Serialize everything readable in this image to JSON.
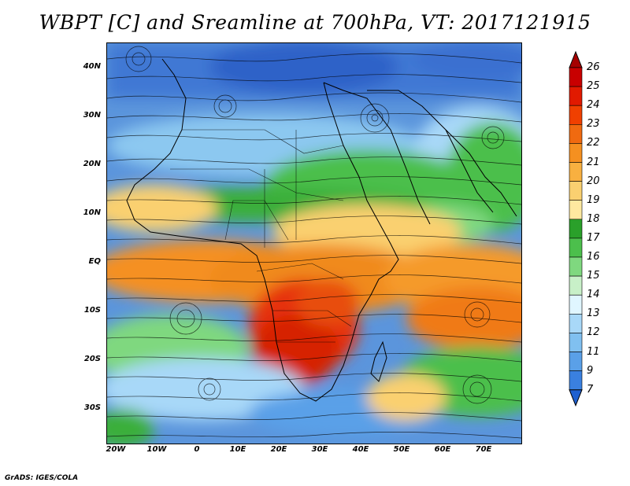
{
  "title": "WBPT [C] and Sreamline at 700hPa, VT: 2017121915",
  "footer": "GrADS: IGES/COLA",
  "map": {
    "latitude_labels": [
      "40N",
      "30N",
      "20N",
      "10N",
      "EQ",
      "10S",
      "20S",
      "30S"
    ],
    "longitude_labels": [
      "20W",
      "10W",
      "0",
      "10E",
      "20E",
      "30E",
      "40E",
      "50E",
      "60E",
      "70E"
    ]
  },
  "colorbar": {
    "labels": [
      "26",
      "25",
      "24",
      "23",
      "22",
      "21",
      "20",
      "19",
      "18",
      "17",
      "16",
      "15",
      "14",
      "13",
      "12",
      "11",
      "9",
      "7"
    ],
    "colors": [
      "#a50000",
      "#c80000",
      "#e11a00",
      "#f04000",
      "#f06a10",
      "#f59020",
      "#f8b040",
      "#fad070",
      "#ffe9a0",
      "#2aa02a",
      "#4cbf4c",
      "#7fd87f",
      "#c8f0c8",
      "#e0f6ff",
      "#a8d8f8",
      "#80c0f0",
      "#5aa0e8",
      "#3a80e0",
      "#1e60d0"
    ]
  }
}
